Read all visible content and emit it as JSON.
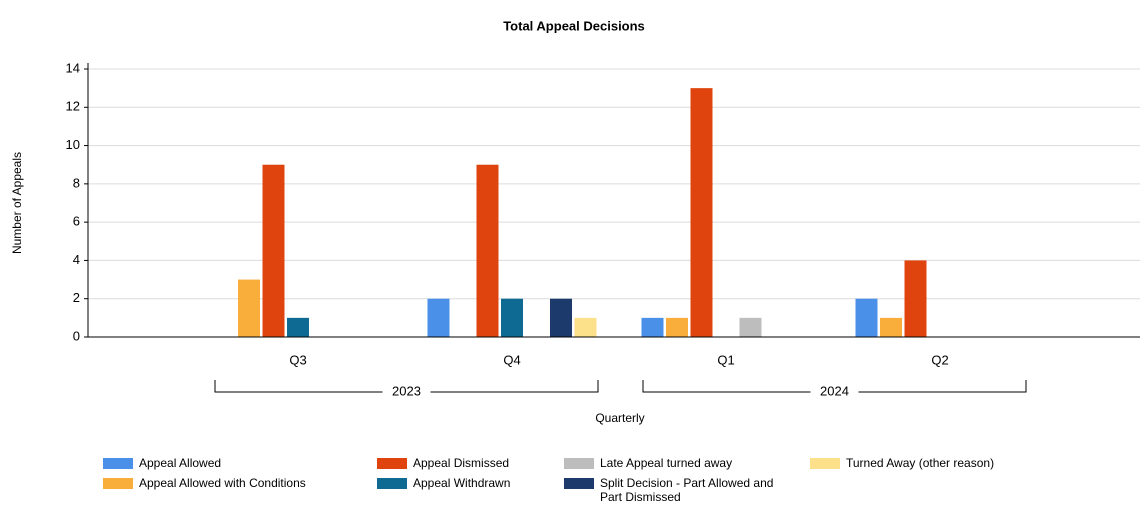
{
  "chart_data": {
    "type": "bar",
    "title": "Total Appeal Decisions",
    "x_label": "Quarterly",
    "y_label": "Number of Appeals",
    "categories": [
      "Q3",
      "Q4",
      "Q1",
      "Q2"
    ],
    "category_groups": [
      {
        "label": "2023",
        "start": 0,
        "end": 1
      },
      {
        "label": "2024",
        "start": 2,
        "end": 3
      }
    ],
    "series": [
      {
        "name": "Appeal Allowed",
        "color": "#4a8fe8",
        "values": [
          0,
          2,
          1,
          2
        ]
      },
      {
        "name": "Appeal Allowed with Conditions",
        "color": "#f9ae3c",
        "values": [
          3,
          0,
          1,
          1
        ]
      },
      {
        "name": "Appeal Dismissed",
        "color": "#e0440e",
        "values": [
          9,
          9,
          13,
          4
        ]
      },
      {
        "name": "Appeal Withdrawn",
        "color": "#0e6a92",
        "values": [
          1,
          2,
          0,
          0
        ]
      },
      {
        "name": "Late Appeal turned away",
        "color": "#bdbdbd",
        "values": [
          0,
          0,
          1,
          0
        ]
      },
      {
        "name": "Split Decision - Part Allowed and Part Dismissed",
        "color": "#1c3a6c",
        "values": [
          0,
          2,
          0,
          0
        ]
      },
      {
        "name": "Turned Away (other reason)",
        "color": "#fde18a",
        "values": [
          0,
          1,
          0,
          0
        ]
      }
    ],
    "ylim": [
      0,
      14
    ],
    "yticks": [
      0,
      2,
      4,
      6,
      8,
      10,
      12,
      14
    ],
    "grid": true,
    "legend": "bottom"
  }
}
